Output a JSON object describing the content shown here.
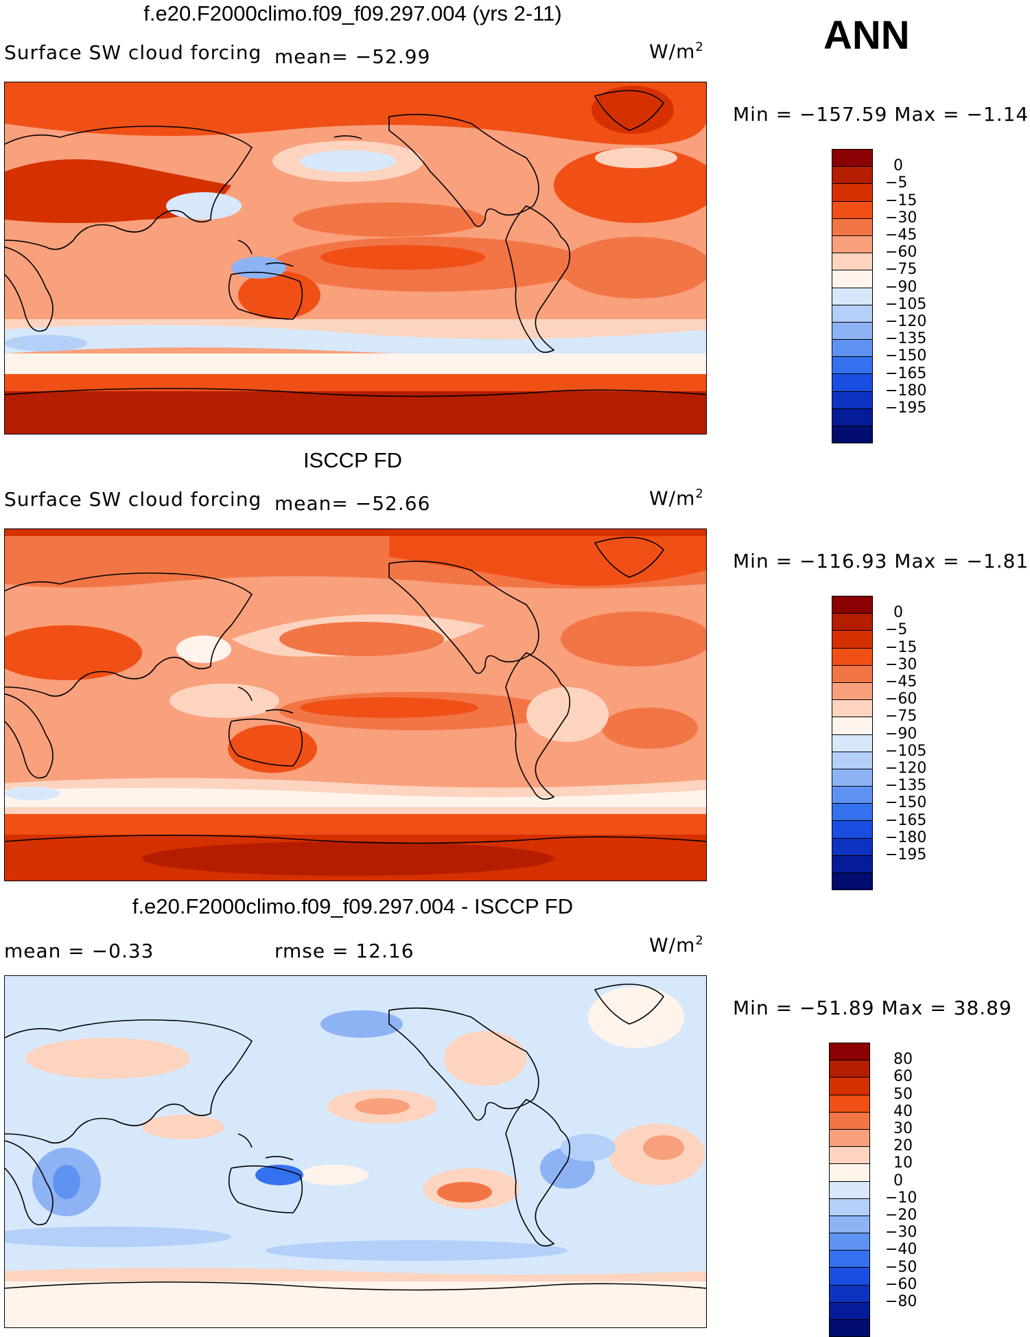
{
  "season": "ANN",
  "panels": [
    {
      "title": "f.e20.F2000climo.f09_f09.297.004 (yrs 2-11)",
      "left_label": "Surface SW cloud forcing",
      "mid_label": "mean= −52.99",
      "units_base": "W/m",
      "units_exp": "2",
      "minmax": "Min = −157.59 Max =   −1.14",
      "colorbar_colors": [
        "#8b0000",
        "#b51d00",
        "#d53100",
        "#f05016",
        "#f27546",
        "#f9a07c",
        "#fcd4bf",
        "#fff4ec",
        "#d7e8fb",
        "#b4cff8",
        "#8db3f5",
        "#5f93f2",
        "#3471ee",
        "#1a4ee0",
        "#0d33c0",
        "#051c99",
        "#000d6e"
      ],
      "colorbar_labels": [
        "0",
        "−5",
        "−15",
        "−30",
        "−45",
        "−60",
        "−75",
        "−90",
        "−105",
        "−120",
        "−135",
        "−150",
        "−165",
        "−180",
        "−195"
      ]
    },
    {
      "title": "ISCCP FD",
      "left_label": "Surface SW cloud forcing",
      "mid_label": "mean= −52.66",
      "units_base": "W/m",
      "units_exp": "2",
      "minmax": "Min = −116.93 Max =   −1.81",
      "colorbar_colors": [
        "#8b0000",
        "#b51d00",
        "#d53100",
        "#f05016",
        "#f27546",
        "#f9a07c",
        "#fcd4bf",
        "#fff4ec",
        "#d7e8fb",
        "#b4cff8",
        "#8db3f5",
        "#5f93f2",
        "#3471ee",
        "#1a4ee0",
        "#0d33c0",
        "#051c99",
        "#000d6e"
      ],
      "colorbar_labels": [
        "0",
        "−5",
        "−15",
        "−30",
        "−45",
        "−60",
        "−75",
        "−90",
        "−105",
        "−120",
        "−135",
        "−150",
        "−165",
        "−180",
        "−195"
      ]
    },
    {
      "title": "f.e20.F2000climo.f09_f09.297.004 - ISCCP FD",
      "left_label": "mean =   −0.33",
      "mid_label": "rmse =   12.16",
      "units_base": "W/m",
      "units_exp": "2",
      "minmax": "Min = −51.89 Max =   38.89",
      "colorbar_colors": [
        "#8b0000",
        "#b51d00",
        "#d53100",
        "#f05016",
        "#f27546",
        "#f9a07c",
        "#fcd4bf",
        "#fff4ec",
        "#d7e8fb",
        "#b4cff8",
        "#8db3f5",
        "#5f93f2",
        "#3471ee",
        "#1a4ee0",
        "#0d33c0",
        "#051c99",
        "#000d6e"
      ],
      "colorbar_labels": [
        "80",
        "60",
        "50",
        "40",
        "30",
        "20",
        "10",
        "0",
        "−10",
        "−20",
        "−30",
        "−40",
        "−50",
        "−60",
        "−80"
      ]
    }
  ]
}
